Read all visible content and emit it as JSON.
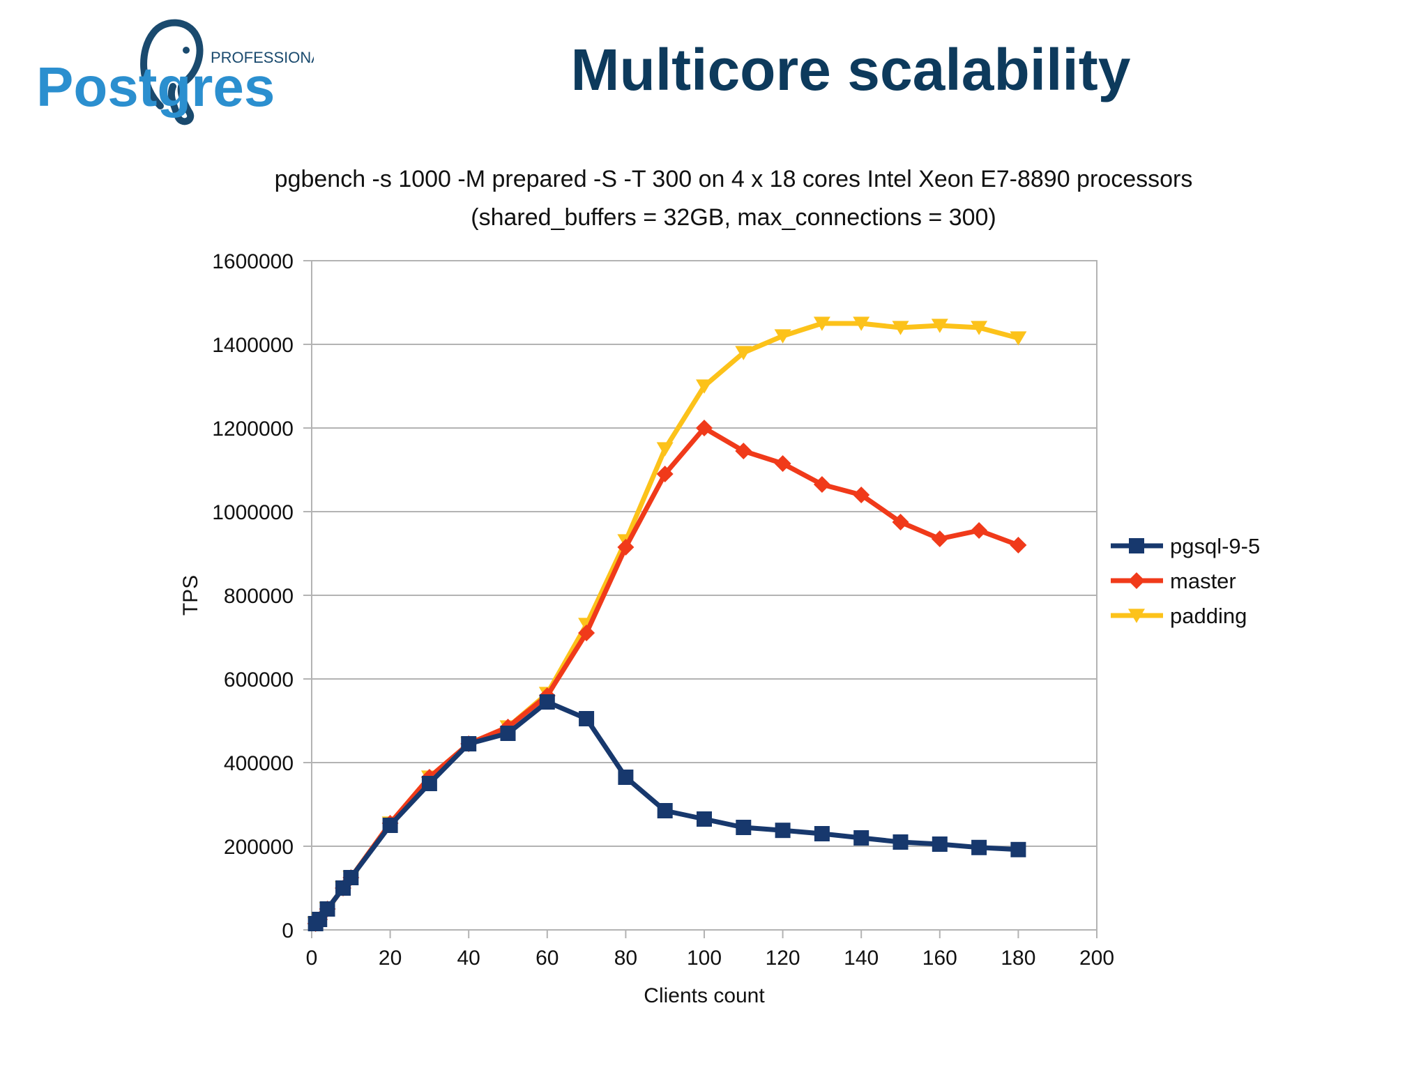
{
  "slide": {
    "title": "Multicore scalability",
    "logo": {
      "word": "Postgres",
      "badge": "PROFESSIONAL"
    },
    "colors": {
      "title": "#0d3a5c",
      "logo": "#2b8fcf",
      "logo_dark": "#1a4a6e"
    }
  },
  "chart_data": {
    "type": "line",
    "title": "pgbench -s 1000 -M prepared -S -T 300 on 4 x 18 cores Intel Xeon E7-8890 processors",
    "subtitle": "(shared_buffers = 32GB, max_connections = 300)",
    "xlabel": "Clients count",
    "ylabel": "TPS",
    "xlim": [
      0,
      200
    ],
    "ylim": [
      0,
      1600000
    ],
    "xticks": [
      0,
      20,
      40,
      60,
      80,
      100,
      120,
      140,
      160,
      180,
      200
    ],
    "yticks": [
      0,
      200000,
      400000,
      600000,
      800000,
      1000000,
      1200000,
      1400000,
      1600000
    ],
    "grid": "horizontal",
    "legend_position": "right",
    "series": [
      {
        "name": "pgsql-9-5",
        "color": "#17386d",
        "marker": "square",
        "points": [
          [
            1,
            15000
          ],
          [
            2,
            25000
          ],
          [
            4,
            50000
          ],
          [
            8,
            100000
          ],
          [
            10,
            125000
          ],
          [
            20,
            250000
          ],
          [
            30,
            350000
          ],
          [
            40,
            445000
          ],
          [
            50,
            470000
          ],
          [
            60,
            545000
          ],
          [
            70,
            505000
          ],
          [
            80,
            365000
          ],
          [
            90,
            285000
          ],
          [
            100,
            265000
          ],
          [
            110,
            245000
          ],
          [
            120,
            238000
          ],
          [
            130,
            230000
          ],
          [
            140,
            220000
          ],
          [
            150,
            210000
          ],
          [
            160,
            205000
          ],
          [
            170,
            197000
          ],
          [
            180,
            192000
          ]
        ]
      },
      {
        "name": "master",
        "color": "#f03a1a",
        "marker": "diamond",
        "points": [
          [
            1,
            15000
          ],
          [
            2,
            25000
          ],
          [
            4,
            50000
          ],
          [
            8,
            100000
          ],
          [
            10,
            125000
          ],
          [
            20,
            255000
          ],
          [
            30,
            365000
          ],
          [
            40,
            445000
          ],
          [
            50,
            485000
          ],
          [
            60,
            560000
          ],
          [
            70,
            710000
          ],
          [
            80,
            915000
          ],
          [
            90,
            1090000
          ],
          [
            100,
            1200000
          ],
          [
            110,
            1145000
          ],
          [
            120,
            1115000
          ],
          [
            130,
            1065000
          ],
          [
            140,
            1040000
          ],
          [
            150,
            975000
          ],
          [
            160,
            935000
          ],
          [
            170,
            955000
          ],
          [
            180,
            920000
          ]
        ]
      },
      {
        "name": "padding",
        "color": "#fcc21a",
        "marker": "triangle-down",
        "points": [
          [
            1,
            15000
          ],
          [
            2,
            25000
          ],
          [
            4,
            50000
          ],
          [
            8,
            100000
          ],
          [
            10,
            125000
          ],
          [
            20,
            255000
          ],
          [
            30,
            365000
          ],
          [
            40,
            445000
          ],
          [
            50,
            485000
          ],
          [
            60,
            565000
          ],
          [
            70,
            730000
          ],
          [
            80,
            930000
          ],
          [
            90,
            1150000
          ],
          [
            100,
            1300000
          ],
          [
            110,
            1380000
          ],
          [
            120,
            1420000
          ],
          [
            130,
            1450000
          ],
          [
            140,
            1450000
          ],
          [
            150,
            1440000
          ],
          [
            160,
            1445000
          ],
          [
            170,
            1440000
          ],
          [
            180,
            1415000
          ]
        ]
      }
    ]
  }
}
